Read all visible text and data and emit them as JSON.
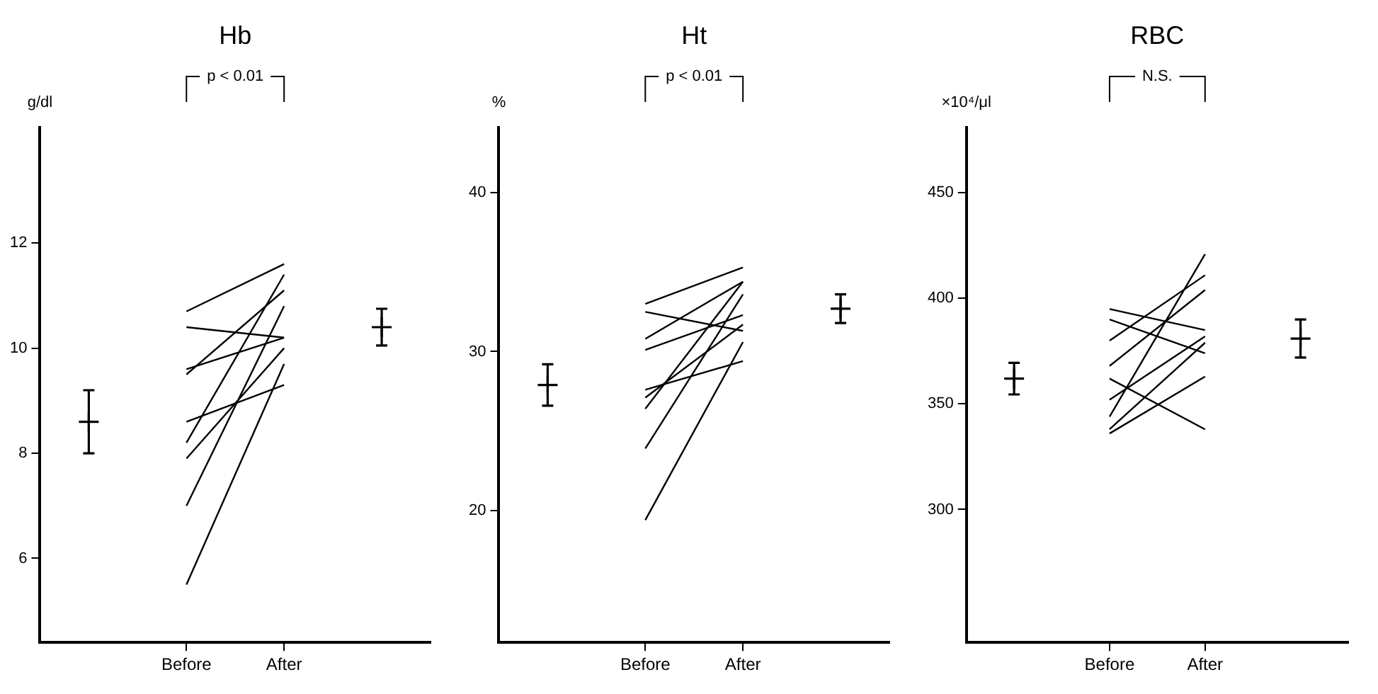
{
  "chart_data": [
    {
      "type": "line",
      "title": "Hb",
      "ylabel": "g/dl",
      "categories": [
        null,
        "Before",
        "After",
        null
      ],
      "ylim": [
        4.4,
        14.2
      ],
      "yticks": [
        6,
        8,
        10,
        12
      ],
      "grid": false,
      "legend": false,
      "marker": "none",
      "line_style": "solid",
      "annotations": [
        "p < 0.01"
      ],
      "series": [
        {
          "color": "#000000",
          "values": [
            null,
            10.7,
            11.6,
            null
          ]
        },
        {
          "color": "#000000",
          "values": [
            null,
            10.4,
            10.2,
            null
          ]
        },
        {
          "color": "#000000",
          "values": [
            null,
            9.6,
            10.2,
            null
          ]
        },
        {
          "color": "#000000",
          "values": [
            null,
            9.5,
            11.1,
            null
          ]
        },
        {
          "color": "#000000",
          "values": [
            null,
            8.6,
            9.3,
            null
          ]
        },
        {
          "color": "#000000",
          "values": [
            null,
            8.2,
            11.4,
            null
          ]
        },
        {
          "color": "#000000",
          "values": [
            null,
            7.9,
            10.0,
            null
          ]
        },
        {
          "color": "#000000",
          "values": [
            null,
            7.0,
            10.8,
            null
          ]
        },
        {
          "color": "#000000",
          "values": [
            null,
            5.5,
            9.7,
            null
          ]
        },
        {
          "type": "scatter",
          "marker": "cross",
          "color": "#000000",
          "values": [
            8.6,
            null,
            null,
            10.4
          ],
          "errors": [
            0.6,
            null,
            null,
            0.35
          ]
        }
      ]
    },
    {
      "type": "line",
      "title": "Ht",
      "ylabel": "%",
      "categories": [
        null,
        "Before",
        "After",
        null
      ],
      "ylim": [
        11.7,
        44.1
      ],
      "yticks": [
        20,
        30,
        40
      ],
      "grid": false,
      "legend": false,
      "marker": "none",
      "line_style": "solid",
      "annotations": [
        "p < 0.01"
      ],
      "series": [
        {
          "color": "#000000",
          "values": [
            null,
            33.0,
            35.3,
            null
          ]
        },
        {
          "color": "#000000",
          "values": [
            null,
            32.5,
            31.3,
            null
          ]
        },
        {
          "color": "#000000",
          "values": [
            null,
            30.8,
            34.4,
            null
          ]
        },
        {
          "color": "#000000",
          "values": [
            null,
            30.1,
            32.3,
            null
          ]
        },
        {
          "color": "#000000",
          "values": [
            null,
            27.6,
            29.4,
            null
          ]
        },
        {
          "color": "#000000",
          "values": [
            null,
            27.1,
            31.7,
            null
          ]
        },
        {
          "color": "#000000",
          "values": [
            null,
            26.4,
            34.4,
            null
          ]
        },
        {
          "color": "#000000",
          "values": [
            null,
            23.9,
            33.6,
            null
          ]
        },
        {
          "color": "#000000",
          "values": [
            null,
            19.4,
            30.6,
            null
          ]
        },
        {
          "type": "scatter",
          "marker": "cross",
          "color": "#000000",
          "values": [
            27.9,
            null,
            null,
            32.7
          ],
          "errors": [
            1.3,
            null,
            null,
            0.9
          ]
        }
      ]
    },
    {
      "type": "line",
      "title": "RBC",
      "ylabel": "×10⁴/μl",
      "categories": [
        null,
        "Before",
        "After",
        null
      ],
      "ylim": [
        237,
        481
      ],
      "yticks": [
        300,
        350,
        400,
        450
      ],
      "grid": false,
      "legend": false,
      "marker": "none",
      "line_style": "solid",
      "annotations": [
        "N.S."
      ],
      "series": [
        {
          "color": "#000000",
          "values": [
            null,
            395,
            385,
            null
          ]
        },
        {
          "color": "#000000",
          "values": [
            null,
            390,
            374,
            null
          ]
        },
        {
          "color": "#000000",
          "values": [
            null,
            380,
            411,
            null
          ]
        },
        {
          "color": "#000000",
          "values": [
            null,
            368,
            404,
            null
          ]
        },
        {
          "color": "#000000",
          "values": [
            null,
            362,
            338,
            null
          ]
        },
        {
          "color": "#000000",
          "values": [
            null,
            352,
            382,
            null
          ]
        },
        {
          "color": "#000000",
          "values": [
            null,
            344,
            421,
            null
          ]
        },
        {
          "color": "#000000",
          "values": [
            null,
            338,
            379,
            null
          ]
        },
        {
          "color": "#000000",
          "values": [
            null,
            336,
            363,
            null
          ]
        },
        {
          "type": "scatter",
          "marker": "cross",
          "color": "#000000",
          "values": [
            362,
            null,
            null,
            381
          ],
          "errors": [
            7.5,
            null,
            null,
            9
          ]
        }
      ]
    }
  ]
}
